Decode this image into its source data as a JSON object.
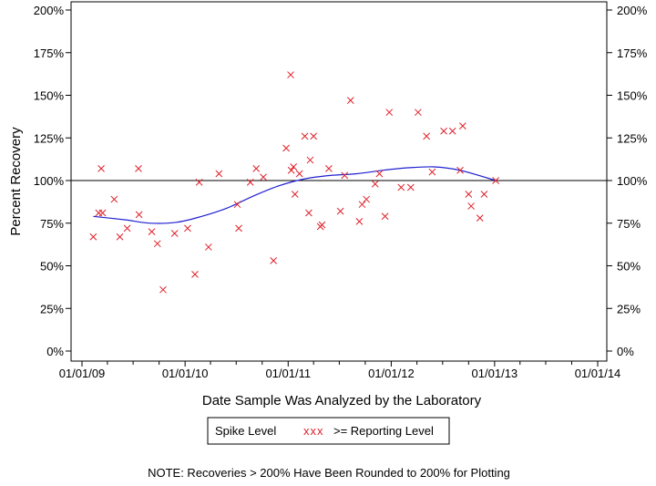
{
  "chart_data": {
    "type": "scatter",
    "xlabel": "Date Sample Was Analyzed by the Laboratory",
    "ylabel": "Percent Recovery",
    "xlim": [
      "2009-01-01",
      "2014-01-01"
    ],
    "ylim": [
      0,
      200
    ],
    "x_ticks": [
      "01/01/09",
      "01/01/10",
      "01/01/11",
      "01/01/12",
      "01/01/13",
      "01/01/14"
    ],
    "y_ticks": [
      "0%",
      "25%",
      "50%",
      "75%",
      "100%",
      "125%",
      "150%",
      "175%",
      "200%"
    ],
    "y_tick_values": [
      0,
      25,
      50,
      75,
      100,
      125,
      150,
      175,
      200
    ],
    "reference_line": 100,
    "legend": {
      "placement": "bottom",
      "title": "Spike Level",
      "marker": "xxx",
      "label": ">= Reporting Level"
    },
    "series": [
      {
        "name": ">= Reporting Level",
        "marker": "x",
        "color": "#e0202a",
        "points": [
          {
            "x": "2009-02-10",
            "y": 67
          },
          {
            "x": "2009-03-01",
            "y": 81
          },
          {
            "x": "2009-03-10",
            "y": 107
          },
          {
            "x": "2009-03-15",
            "y": 81
          },
          {
            "x": "2009-04-25",
            "y": 89
          },
          {
            "x": "2009-05-15",
            "y": 67
          },
          {
            "x": "2009-06-10",
            "y": 72
          },
          {
            "x": "2009-07-20",
            "y": 107
          },
          {
            "x": "2009-07-22",
            "y": 80
          },
          {
            "x": "2009-09-05",
            "y": 70
          },
          {
            "x": "2009-09-25",
            "y": 63
          },
          {
            "x": "2009-10-15",
            "y": 36
          },
          {
            "x": "2009-11-25",
            "y": 69
          },
          {
            "x": "2010-01-10",
            "y": 72
          },
          {
            "x": "2010-02-05",
            "y": 45
          },
          {
            "x": "2010-02-20",
            "y": 99
          },
          {
            "x": "2010-03-25",
            "y": 61
          },
          {
            "x": "2010-05-01",
            "y": 104
          },
          {
            "x": "2010-07-05",
            "y": 86
          },
          {
            "x": "2010-07-10",
            "y": 72
          },
          {
            "x": "2010-08-20",
            "y": 99
          },
          {
            "x": "2010-09-10",
            "y": 107
          },
          {
            "x": "2010-10-05",
            "y": 102
          },
          {
            "x": "2010-11-10",
            "y": 53
          },
          {
            "x": "2010-12-25",
            "y": 119
          },
          {
            "x": "2011-01-10",
            "y": 162
          },
          {
            "x": "2011-01-12",
            "y": 106
          },
          {
            "x": "2011-01-20",
            "y": 108
          },
          {
            "x": "2011-01-25",
            "y": 92
          },
          {
            "x": "2011-02-10",
            "y": 104
          },
          {
            "x": "2011-03-01",
            "y": 126
          },
          {
            "x": "2011-03-15",
            "y": 81
          },
          {
            "x": "2011-03-20",
            "y": 112
          },
          {
            "x": "2011-04-01",
            "y": 126
          },
          {
            "x": "2011-04-25",
            "y": 73
          },
          {
            "x": "2011-05-01",
            "y": 74
          },
          {
            "x": "2011-05-25",
            "y": 107
          },
          {
            "x": "2011-07-05",
            "y": 82
          },
          {
            "x": "2011-07-20",
            "y": 103
          },
          {
            "x": "2011-08-10",
            "y": 147
          },
          {
            "x": "2011-09-10",
            "y": 76
          },
          {
            "x": "2011-09-20",
            "y": 86
          },
          {
            "x": "2011-10-05",
            "y": 89
          },
          {
            "x": "2011-11-05",
            "y": 98
          },
          {
            "x": "2011-11-20",
            "y": 104
          },
          {
            "x": "2011-12-10",
            "y": 79
          },
          {
            "x": "2011-12-25",
            "y": 140
          },
          {
            "x": "2012-02-05",
            "y": 96
          },
          {
            "x": "2012-03-10",
            "y": 96
          },
          {
            "x": "2012-04-05",
            "y": 140
          },
          {
            "x": "2012-05-05",
            "y": 126
          },
          {
            "x": "2012-05-25",
            "y": 105
          },
          {
            "x": "2012-07-05",
            "y": 129
          },
          {
            "x": "2012-08-05",
            "y": 129
          },
          {
            "x": "2012-09-01",
            "y": 106
          },
          {
            "x": "2012-09-10",
            "y": 132
          },
          {
            "x": "2012-10-01",
            "y": 92
          },
          {
            "x": "2012-10-10",
            "y": 85
          },
          {
            "x": "2012-11-10",
            "y": 78
          },
          {
            "x": "2012-11-25",
            "y": 92
          },
          {
            "x": "2013-01-05",
            "y": 100
          }
        ]
      },
      {
        "name": "smooth fit",
        "type": "line",
        "color": "#2020d0",
        "points": [
          {
            "x": "2009-02-10",
            "y": 79
          },
          {
            "x": "2009-06-01",
            "y": 77
          },
          {
            "x": "2009-09-01",
            "y": 75
          },
          {
            "x": "2009-12-01",
            "y": 75.5
          },
          {
            "x": "2010-03-01",
            "y": 79
          },
          {
            "x": "2010-06-01",
            "y": 84
          },
          {
            "x": "2010-09-01",
            "y": 91
          },
          {
            "x": "2010-12-01",
            "y": 97
          },
          {
            "x": "2011-03-01",
            "y": 101
          },
          {
            "x": "2011-06-01",
            "y": 103
          },
          {
            "x": "2011-09-01",
            "y": 104
          },
          {
            "x": "2011-12-01",
            "y": 106
          },
          {
            "x": "2012-03-01",
            "y": 107.5
          },
          {
            "x": "2012-06-01",
            "y": 108
          },
          {
            "x": "2012-09-01",
            "y": 106
          },
          {
            "x": "2013-01-05",
            "y": 100
          }
        ]
      }
    ],
    "note": "NOTE: Recoveries > 200% Have Been Rounded to 200% for Plotting"
  }
}
